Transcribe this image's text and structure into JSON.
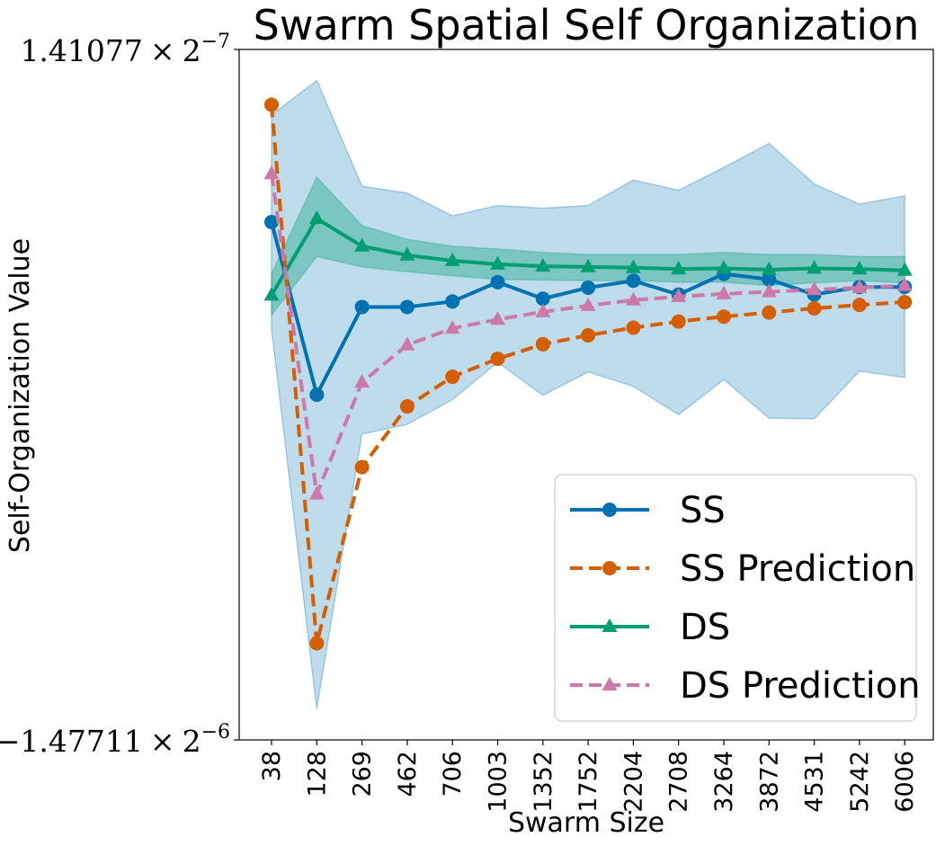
{
  "chart_data": {
    "type": "line",
    "title": "Swarm Spatial Self Organization",
    "xlabel": "Swarm Size",
    "ylabel": "Self-Organization Value",
    "categories": [
      "38",
      "128",
      "269",
      "462",
      "706",
      "1003",
      "1352",
      "1752",
      "2204",
      "2708",
      "3264",
      "3872",
      "4531",
      "5242",
      "6006"
    ],
    "yticks": {
      "top": {
        "mantissa": "1.41077",
        "base": "2",
        "exponent": "−7"
      },
      "bottom": {
        "mantissa": "−1.47711",
        "base": "2",
        "exponent": "−6"
      }
    },
    "ylim": [
      0,
      100
    ],
    "grid": false,
    "legend_position": "lower-right",
    "series": [
      {
        "name": "SS",
        "color": "#0072b2",
        "dash": false,
        "marker": "circle",
        "values": [
          75,
          50,
          62.7,
          62.7,
          63.5,
          66.3,
          63.9,
          65.5,
          66.5,
          64.5,
          67.5,
          66.7,
          64.5,
          65.6,
          65.6
        ],
        "band_upper": [
          90.5,
          95.5,
          80.2,
          79.2,
          75.9,
          77.4,
          77.0,
          77.4,
          81.1,
          79.6,
          82.9,
          86.4,
          80.5,
          77.6,
          78.8
        ],
        "band_lower": [
          59.5,
          4.5,
          44.3,
          45.7,
          49.3,
          54.7,
          49.9,
          53.3,
          51.2,
          47.1,
          52.2,
          46.6,
          46.5,
          53.4,
          52.5
        ]
      },
      {
        "name": "SS Prediction",
        "color": "#d55e00",
        "dash": true,
        "marker": "circle",
        "values": [
          92,
          14,
          39.5,
          48.3,
          52.6,
          55.2,
          57.3,
          58.6,
          59.7,
          60.6,
          61.3,
          61.9,
          62.5,
          63.0,
          63.4
        ]
      },
      {
        "name": "DS",
        "color": "#009e73",
        "dash": false,
        "marker": "triangle",
        "values": [
          64.4,
          75.5,
          71.5,
          70.2,
          69.4,
          68.9,
          68.6,
          68.5,
          68.4,
          68.2,
          68.3,
          68.1,
          68.3,
          68.2,
          68.0
        ],
        "band_upper": [
          67.5,
          81.5,
          74.5,
          72.5,
          71.5,
          71.1,
          70.6,
          70.3,
          70.3,
          70.3,
          70.6,
          70.3,
          70.3,
          70.0,
          70.0
        ],
        "band_lower": [
          61.5,
          70.0,
          68.5,
          67.8,
          67.2,
          66.7,
          66.6,
          66.5,
          66.5,
          66.3,
          66.3,
          65.8,
          66.2,
          66.5,
          66.2
        ]
      },
      {
        "name": "DS Prediction",
        "color": "#cc79a7",
        "dash": true,
        "marker": "triangle",
        "values": [
          82,
          35.6,
          51.8,
          57.2,
          59.6,
          60.9,
          62.0,
          62.9,
          63.7,
          64.2,
          64.6,
          64.9,
          65.2,
          65.5,
          65.8
        ]
      }
    ]
  }
}
